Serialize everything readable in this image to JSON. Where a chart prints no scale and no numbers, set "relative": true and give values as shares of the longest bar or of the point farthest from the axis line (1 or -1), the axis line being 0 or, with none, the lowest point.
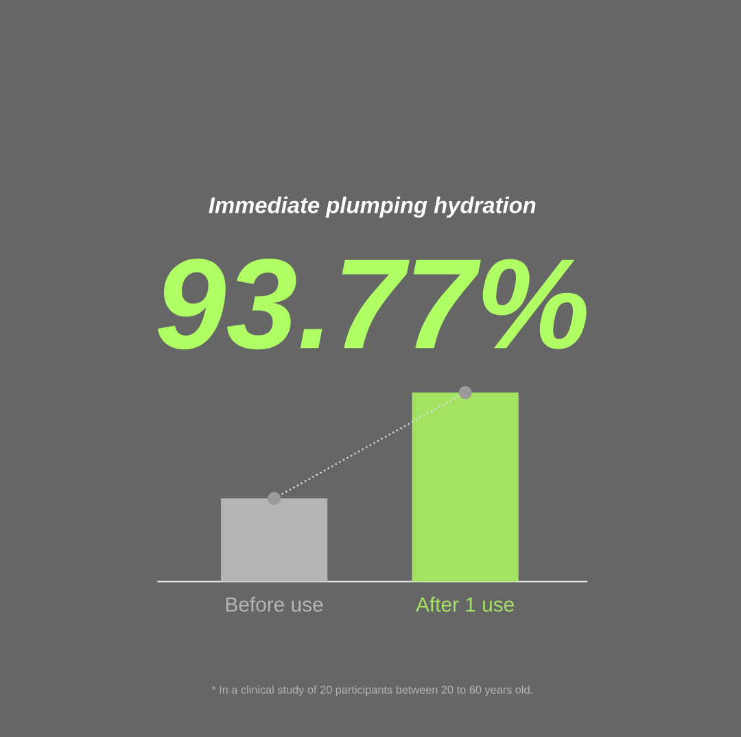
{
  "chart_data": {
    "type": "bar",
    "title": "Immediate plumping hydration",
    "subtitle": "93.77%",
    "categories": [
      "Before use",
      "After 1 use"
    ],
    "relative": true,
    "series": [
      {
        "values": [
          0.44,
          1
        ],
        "colors": [
          "#b4b4b4",
          "#a3e263"
        ]
      },
      {
        "type": "line",
        "values": [
          0.44,
          1
        ],
        "color": "#dcdcdc",
        "line_style": "dotted",
        "marker": "circle"
      }
    ],
    "annotations": [
      "* In a clinical study of 20 participants between 20 to 60 years old."
    ]
  }
}
